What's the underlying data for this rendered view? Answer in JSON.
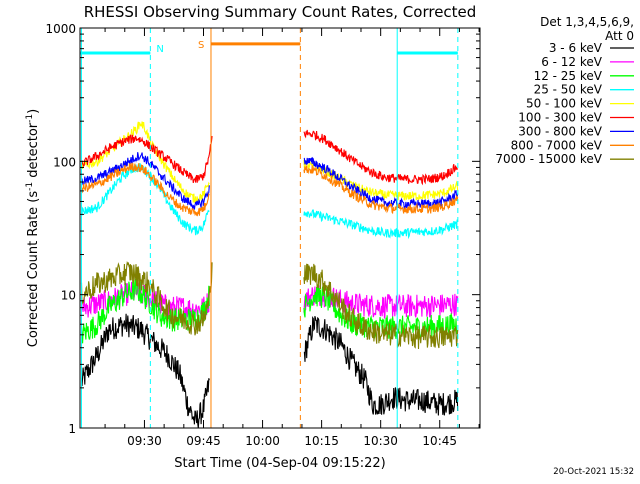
{
  "chart_data": {
    "type": "line",
    "title": "RHESSI Observing Summary Count Rates, Corrected",
    "xlabel": "Start Time (04-Sep-04 09:15:22)",
    "ylabel": "Corrected Count Rate (s⁻¹ detector⁻¹)",
    "ylabel_main": "Corrected Count Rate (s",
    "ylabel_sup1": "-1",
    "ylabel_mid": " detector",
    "ylabel_sup2": "-1",
    "ylabel_end": ")",
    "y_scale": "log",
    "ylim": [
      1,
      1000
    ],
    "xlim_minutes": [
      -1.37,
      100.23
    ],
    "xlim_time": [
      "09:13:59",
      "10:55:35"
    ],
    "x_ticks": [
      {
        "label": "09:30",
        "minute": 15
      },
      {
        "label": "09:45",
        "minute": 30
      },
      {
        "label": "10:00",
        "minute": 45
      },
      {
        "label": "10:15",
        "minute": 60
      },
      {
        "label": "10:30",
        "minute": 75
      },
      {
        "label": "10:45",
        "minute": 90
      }
    ],
    "y_ticks": [
      {
        "label": "1",
        "value": 1
      },
      {
        "label": "10",
        "value": 10
      },
      {
        "label": "100",
        "value": 100
      },
      {
        "label": "1000",
        "value": 1000
      }
    ],
    "legend": {
      "placement": "top-right",
      "header": [
        "Det 1,3,4,5,6,9,",
        "Att 0"
      ]
    },
    "series": [
      {
        "name": "3 - 6 keV",
        "color": "#000000",
        "points": [
          [
            -1,
            2.2
          ],
          [
            3,
            3.5
          ],
          [
            6,
            5.5
          ],
          [
            10,
            6
          ],
          [
            14,
            5.5
          ],
          [
            17,
            4.5
          ],
          [
            21,
            3.5
          ],
          [
            24,
            2.5
          ],
          [
            26,
            1.5
          ],
          [
            28,
            1.1
          ],
          [
            30,
            1.4
          ],
          [
            31.5,
            2.2
          ],
          null,
          [
            55.5,
            3.5
          ],
          [
            58,
            6
          ],
          [
            61,
            5.5
          ],
          [
            65,
            4.2
          ],
          [
            68,
            3
          ],
          [
            71,
            2.3
          ],
          [
            73,
            1.5
          ],
          [
            75,
            1.5
          ],
          [
            78,
            1.7
          ],
          [
            82,
            1.6
          ],
          [
            86,
            1.6
          ],
          [
            90,
            1.5
          ],
          [
            94.6,
            1.6
          ]
        ]
      },
      {
        "name": "6 - 12 keV",
        "color": "#ff00ff",
        "points": [
          [
            -1,
            8
          ],
          [
            3,
            8.5
          ],
          [
            6,
            9
          ],
          [
            10,
            10
          ],
          [
            13,
            10.5
          ],
          [
            16,
            9.5
          ],
          [
            19,
            8.5
          ],
          [
            22,
            8
          ],
          [
            25,
            8
          ],
          [
            28,
            7.8
          ],
          [
            30,
            8
          ],
          [
            31.5,
            9
          ],
          null,
          [
            55.5,
            9
          ],
          [
            58,
            10
          ],
          [
            61,
            10
          ],
          [
            65,
            9
          ],
          [
            68,
            8.5
          ],
          [
            72,
            8.3
          ],
          [
            76,
            8.2
          ],
          [
            80,
            8.2
          ],
          [
            85,
            8.2
          ],
          [
            90,
            8.3
          ],
          [
            94.6,
            8.5
          ]
        ]
      },
      {
        "name": "12 - 25 keV",
        "color": "#00ff00",
        "points": [
          [
            -1,
            5
          ],
          [
            3,
            6
          ],
          [
            6,
            8
          ],
          [
            10,
            10
          ],
          [
            13,
            11
          ],
          [
            16,
            9
          ],
          [
            19,
            7
          ],
          [
            22,
            6.5
          ],
          [
            25,
            6.5
          ],
          [
            28,
            6.6
          ],
          [
            30,
            7.5
          ],
          [
            31.5,
            10
          ],
          null,
          [
            55.5,
            8
          ],
          [
            58,
            10
          ],
          [
            61,
            9.5
          ],
          [
            65,
            7
          ],
          [
            68,
            6
          ],
          [
            72,
            5.8
          ],
          [
            76,
            5.7
          ],
          [
            80,
            5.7
          ],
          [
            85,
            5.7
          ],
          [
            90,
            5.8
          ],
          [
            94.6,
            6
          ]
        ]
      },
      {
        "name": "25 - 50 keV",
        "color": "#00ffff",
        "points": [
          [
            -1,
            42
          ],
          [
            3,
            45
          ],
          [
            6,
            58
          ],
          [
            9,
            75
          ],
          [
            12,
            88
          ],
          [
            14,
            90
          ],
          [
            16,
            82
          ],
          [
            19,
            62
          ],
          [
            22,
            44
          ],
          [
            25,
            34
          ],
          [
            28,
            30
          ],
          [
            30,
            33
          ],
          [
            31.5,
            45
          ],
          null,
          [
            55.5,
            42
          ],
          [
            58,
            40
          ],
          [
            61,
            38
          ],
          [
            64,
            36
          ],
          [
            67,
            34
          ],
          [
            70,
            32
          ],
          [
            73,
            30
          ],
          [
            76,
            29
          ],
          [
            80,
            29
          ],
          [
            84,
            29.5
          ],
          [
            88,
            30
          ],
          [
            91,
            31
          ],
          [
            94.6,
            34
          ]
        ]
      },
      {
        "name": "50 - 100 keV",
        "color": "#ffff00",
        "points": [
          [
            -1,
            92
          ],
          [
            3,
            100
          ],
          [
            6,
            118
          ],
          [
            9,
            140
          ],
          [
            11,
            155
          ],
          [
            13,
            175
          ],
          [
            14,
            195
          ],
          [
            15,
            180
          ],
          [
            17,
            130
          ],
          [
            20,
            95
          ],
          [
            23,
            70
          ],
          [
            26,
            56
          ],
          [
            28,
            52
          ],
          [
            30,
            56
          ],
          [
            31.5,
            72
          ],
          null,
          [
            55.5,
            95
          ],
          [
            58,
            92
          ],
          [
            61,
            85
          ],
          [
            64,
            76
          ],
          [
            67,
            68
          ],
          [
            70,
            62
          ],
          [
            73,
            58
          ],
          [
            76,
            56
          ],
          [
            80,
            55
          ],
          [
            84,
            55
          ],
          [
            88,
            56
          ],
          [
            91,
            58
          ],
          [
            94.6,
            65
          ]
        ]
      },
      {
        "name": "100 - 300 keV",
        "color": "#ff0000",
        "points": [
          [
            -1,
            95
          ],
          [
            3,
            110
          ],
          [
            6,
            125
          ],
          [
            9,
            138
          ],
          [
            11,
            145
          ],
          [
            13,
            150
          ],
          [
            15,
            140
          ],
          [
            17,
            125
          ],
          [
            20,
            108
          ],
          [
            23,
            92
          ],
          [
            26,
            78
          ],
          [
            28,
            72
          ],
          [
            30,
            78
          ],
          [
            31.5,
            110
          ],
          [
            32.3,
            160
          ],
          null,
          [
            55.5,
            162
          ],
          [
            58,
            160
          ],
          [
            61,
            145
          ],
          [
            64,
            125
          ],
          [
            67,
            106
          ],
          [
            70,
            92
          ],
          [
            73,
            82
          ],
          [
            76,
            76
          ],
          [
            80,
            74
          ],
          [
            84,
            73
          ],
          [
            88,
            74
          ],
          [
            91,
            78
          ],
          [
            94.6,
            92
          ]
        ]
      },
      {
        "name": "300 - 800 keV",
        "color": "#0000ff",
        "points": [
          [
            -1,
            70
          ],
          [
            3,
            75
          ],
          [
            6,
            82
          ],
          [
            9,
            92
          ],
          [
            11,
            100
          ],
          [
            13,
            108
          ],
          [
            14,
            112
          ],
          [
            16,
            100
          ],
          [
            19,
            80
          ],
          [
            22,
            64
          ],
          [
            25,
            52
          ],
          [
            28,
            46
          ],
          [
            30,
            50
          ],
          [
            31.5,
            62
          ],
          null,
          [
            55.5,
            102
          ],
          [
            58,
            98
          ],
          [
            61,
            88
          ],
          [
            64,
            77
          ],
          [
            67,
            66
          ],
          [
            70,
            58
          ],
          [
            73,
            52
          ],
          [
            76,
            49
          ],
          [
            80,
            48
          ],
          [
            84,
            48
          ],
          [
            88,
            48
          ],
          [
            91,
            50
          ],
          [
            94.6,
            57
          ]
        ]
      },
      {
        "name": "800 - 7000 keV",
        "color": "#ff8000",
        "points": [
          [
            -1,
            62
          ],
          [
            3,
            67
          ],
          [
            6,
            75
          ],
          [
            9,
            84
          ],
          [
            11,
            90
          ],
          [
            13,
            92
          ],
          [
            15,
            86
          ],
          [
            18,
            70
          ],
          [
            21,
            55
          ],
          [
            24,
            46
          ],
          [
            27,
            42
          ],
          [
            29,
            42
          ],
          [
            30.5,
            46
          ],
          [
            31.5,
            60
          ],
          null,
          [
            55.5,
            88
          ],
          [
            58,
            86
          ],
          [
            61,
            78
          ],
          [
            64,
            68
          ],
          [
            67,
            59
          ],
          [
            70,
            52
          ],
          [
            73,
            47
          ],
          [
            76,
            45
          ],
          [
            80,
            44
          ],
          [
            84,
            44
          ],
          [
            88,
            44
          ],
          [
            91,
            46
          ],
          [
            94.6,
            52
          ]
        ]
      },
      {
        "name": "7000 - 15000 keV",
        "color": "#808000",
        "points": [
          [
            -1,
            10
          ],
          [
            3,
            12
          ],
          [
            6,
            13
          ],
          [
            9,
            14
          ],
          [
            11,
            15
          ],
          [
            13,
            14
          ],
          [
            16,
            12
          ],
          [
            19,
            9
          ],
          [
            22,
            7
          ],
          [
            25,
            6.5
          ],
          [
            28,
            6
          ],
          [
            30,
            6.5
          ],
          [
            31.5,
            9
          ],
          [
            32.3,
            20
          ],
          null,
          [
            55.5,
            14
          ],
          [
            58,
            14.5
          ],
          [
            61,
            12
          ],
          [
            64,
            9
          ],
          [
            67,
            7
          ],
          [
            70,
            5.8
          ],
          [
            73,
            5.3
          ],
          [
            76,
            5
          ],
          [
            80,
            5
          ],
          [
            84,
            4.8
          ],
          [
            88,
            4.8
          ],
          [
            91,
            4.8
          ],
          [
            94.6,
            5
          ]
        ]
      }
    ],
    "annotations": {
      "night_bars": [
        {
          "label": "N",
          "color": "#00ffff",
          "bars": [
            [
              -1.37,
              16.5
            ],
            [
              79.2,
              94.6
            ]
          ],
          "bar_y": 650
        }
      ],
      "saa_bars": [
        {
          "label": "S",
          "color": "#ff8000",
          "bars": [
            [
              31.9,
              54.6
            ]
          ],
          "bar_y": 760
        }
      ],
      "vertical_lines": [
        {
          "minute": -1.0,
          "color": "#00ffff",
          "style": "solid"
        },
        {
          "minute": 16.5,
          "color": "#00ffff",
          "style": "dashed"
        },
        {
          "minute": 31.9,
          "color": "#ff8000",
          "style": "solid"
        },
        {
          "minute": 54.6,
          "color": "#ff8000",
          "style": "dashed"
        },
        {
          "minute": 79.2,
          "color": "#00ffff",
          "style": "solid"
        },
        {
          "minute": 94.6,
          "color": "#00ffff",
          "style": "dashed"
        }
      ]
    },
    "grid": false
  },
  "footer": {
    "timestamp": "20-Oct-2021 15:32"
  }
}
